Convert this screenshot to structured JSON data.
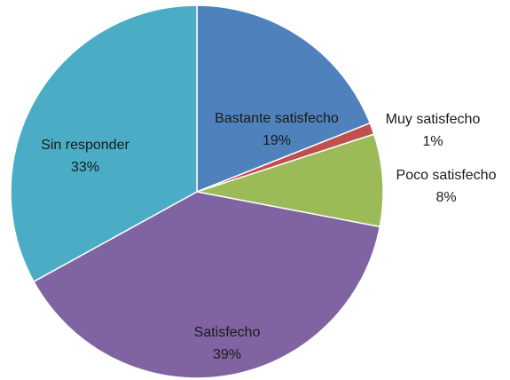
{
  "chart_data": {
    "type": "pie",
    "title": "",
    "slices": [
      {
        "name": "Bastante satisfecho",
        "value": 19,
        "label": "19%",
        "color": "#4f81bd"
      },
      {
        "name": "Muy satisfecho",
        "value": 1,
        "label": "1%",
        "color": "#c0504d"
      },
      {
        "name": "Poco satisfecho",
        "value": 8,
        "label": "8%",
        "color": "#9bbb59"
      },
      {
        "name": "Satisfecho",
        "value": 39,
        "label": "39%",
        "color": "#8064a2"
      },
      {
        "name": "Sin responder",
        "value": 33,
        "label": "33%",
        "color": "#4bacc6"
      }
    ],
    "start": "12 o'clock",
    "direction": "clockwise",
    "legend": "none",
    "data_labels": "category name and percentage"
  }
}
